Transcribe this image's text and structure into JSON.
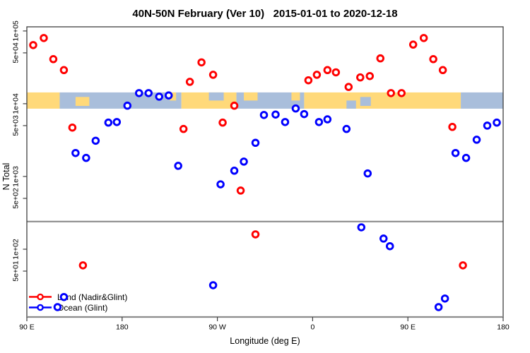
{
  "chart_data": {
    "type": "scatter",
    "title": "40N-50N February (Ver 10)   2015-01-01 to 2020-12-18",
    "xlabel": "Longitude (deg E)",
    "ylabel": "N Total",
    "x_axis": {
      "min": 90,
      "max": 540,
      "ticks": [
        {
          "lon": 90,
          "label": "90 E"
        },
        {
          "lon": 180,
          "label": "180"
        },
        {
          "lon": 270,
          "label": "90 W"
        },
        {
          "lon": 360,
          "label": "0"
        },
        {
          "lon": 450,
          "label": "90 E"
        },
        {
          "lon": 540,
          "label": "180"
        }
      ]
    },
    "y_axis": {
      "scale": "log",
      "min": 11.7,
      "max": 114000,
      "ticks": [
        {
          "value": 100000,
          "label": "1e+05"
        },
        {
          "value": 50000,
          "label": "5e+04"
        },
        {
          "value": 10000,
          "label": "1e+04"
        },
        {
          "value": 5000,
          "label": "5e+03"
        },
        {
          "value": 1000,
          "label": "1e+03"
        },
        {
          "value": 500,
          "label": "5e+02"
        },
        {
          "value": 100,
          "label": "1e+02"
        },
        {
          "value": 50,
          "label": "5e+01"
        }
      ]
    },
    "threshold_line": {
      "value": 240,
      "color": "#8c8c8c"
    },
    "map_band": {
      "top_value": 14300,
      "bottom_value": 8550,
      "land_color": "#ffd97a",
      "ocean_color": "#a9bedb",
      "segments": [
        {
          "from": 90,
          "to": 121,
          "type": "land"
        },
        {
          "from": 121,
          "to": 236,
          "type": "ocean"
        },
        {
          "from": 236,
          "to": 288,
          "type": "land"
        },
        {
          "from": 288,
          "to": 352,
          "type": "ocean"
        },
        {
          "from": 352,
          "to": 500,
          "type": "land"
        },
        {
          "from": 500,
          "to": 540,
          "type": "ocean"
        }
      ],
      "details": [
        {
          "from": 136,
          "to": 149,
          "type": "land",
          "vert": "mid"
        },
        {
          "from": 225,
          "to": 231,
          "type": "land",
          "vert": "top"
        },
        {
          "from": 295,
          "to": 308,
          "type": "land",
          "vert": "top"
        },
        {
          "from": 340,
          "to": 348,
          "type": "land",
          "vert": "top"
        },
        {
          "from": 262,
          "to": 276,
          "type": "ocean",
          "vert": "top"
        },
        {
          "from": 392,
          "to": 401,
          "type": "ocean",
          "vert": "bottom"
        },
        {
          "from": 405,
          "to": 415,
          "type": "ocean",
          "vert": "mid"
        }
      ]
    },
    "series": [
      {
        "name": "Land (Nadir&Glint)",
        "color": "#ff0000",
        "points": [
          [
            96,
            64000
          ],
          [
            106,
            80000
          ],
          [
            115,
            41000
          ],
          [
            125,
            29000
          ],
          [
            133,
            4700
          ],
          [
            143,
            60
          ],
          [
            238,
            4500
          ],
          [
            244,
            20000
          ],
          [
            255,
            37000
          ],
          [
            266,
            25000
          ],
          [
            275,
            5500
          ],
          [
            286,
            9400
          ],
          [
            292,
            640
          ],
          [
            306,
            160
          ],
          [
            356,
            21000
          ],
          [
            364,
            25000
          ],
          [
            374,
            29000
          ],
          [
            382,
            27000
          ],
          [
            394,
            17000
          ],
          [
            405,
            23000
          ],
          [
            414,
            24000
          ],
          [
            424,
            42000
          ],
          [
            434,
            14000
          ],
          [
            444,
            14000
          ],
          [
            455,
            65000
          ],
          [
            465,
            80000
          ],
          [
            474,
            41000
          ],
          [
            483,
            29000
          ],
          [
            492,
            4800
          ],
          [
            502,
            60
          ]
        ]
      },
      {
        "name": "Ocean (Glint)",
        "color": "#0000ff",
        "points": [
          [
            119,
            16
          ],
          [
            125,
            22
          ],
          [
            136,
            2100
          ],
          [
            146,
            1800
          ],
          [
            155,
            3100
          ],
          [
            167,
            5500
          ],
          [
            175,
            5600
          ],
          [
            185,
            9400
          ],
          [
            196,
            14000
          ],
          [
            205,
            14000
          ],
          [
            215,
            12500
          ],
          [
            224,
            13000
          ],
          [
            233,
            1400
          ],
          [
            266,
            32
          ],
          [
            273,
            780
          ],
          [
            286,
            1200
          ],
          [
            295,
            1600
          ],
          [
            306,
            2900
          ],
          [
            314,
            7000
          ],
          [
            325,
            7100
          ],
          [
            334,
            5600
          ],
          [
            344,
            8600
          ],
          [
            352,
            7200
          ],
          [
            366,
            5600
          ],
          [
            374,
            6100
          ],
          [
            392,
            4500
          ],
          [
            406,
            200
          ],
          [
            412,
            1100
          ],
          [
            427,
            140
          ],
          [
            433,
            110
          ],
          [
            479,
            16
          ],
          [
            485,
            21
          ],
          [
            495,
            2100
          ],
          [
            505,
            1800
          ],
          [
            515,
            3200
          ],
          [
            525,
            5000
          ],
          [
            534,
            5500
          ]
        ]
      }
    ]
  },
  "legend": {
    "items": [
      {
        "label": "Land (Nadir&Glint)",
        "color": "#ff0000"
      },
      {
        "label": "Ocean (Glint)",
        "color": "#0000ff"
      }
    ]
  }
}
